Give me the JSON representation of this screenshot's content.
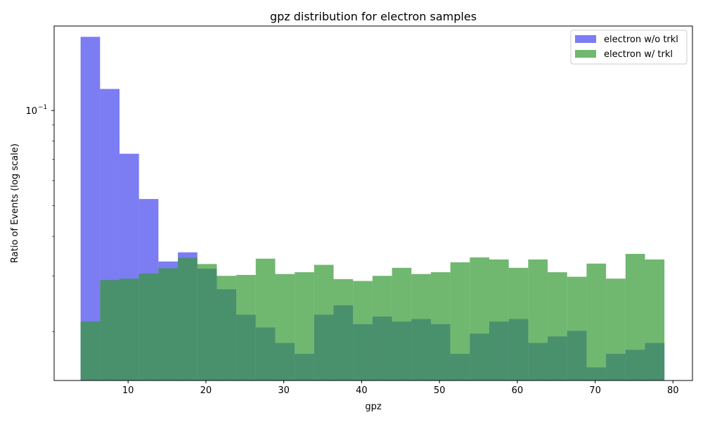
{
  "chart_data": {
    "type": "bar",
    "title": "gpz distribution for electron samples",
    "xlabel": "gpz",
    "ylabel": "Ratio of Events (log scale)",
    "y_scale": "log",
    "xlim": [
      0.5,
      82.5
    ],
    "ylim": [
      0.014,
      0.185
    ],
    "x_ticks": [
      10,
      20,
      30,
      40,
      50,
      60,
      70,
      80
    ],
    "x_tick_labels": [
      "10",
      "20",
      "30",
      "40",
      "50",
      "60",
      "70",
      "80"
    ],
    "y_ticks": [
      0.1
    ],
    "y_tick_labels": [
      "10",
      "−1"
    ],
    "legend_position": "upper right",
    "bin_edges": [
      3.9,
      6.4,
      8.9,
      11.4,
      13.9,
      16.4,
      18.9,
      21.4,
      23.9,
      26.4,
      28.9,
      31.4,
      33.9,
      36.4,
      38.9,
      41.4,
      43.9,
      46.4,
      48.9,
      51.4,
      53.9,
      56.4,
      58.9,
      61.4,
      63.9,
      66.4,
      68.9,
      71.4,
      73.9,
      76.4,
      78.9
    ],
    "series": [
      {
        "name": "electron w/o trkl",
        "color": "#4444ee",
        "opacity": 0.7,
        "values": [
          0.171,
          0.117,
          0.073,
          0.0525,
          0.0333,
          0.0356,
          0.0316,
          0.0272,
          0.0226,
          0.0206,
          0.0184,
          0.017,
          0.0226,
          0.0242,
          0.0211,
          0.0223,
          0.0215,
          0.0219,
          0.0211,
          0.017,
          0.0197,
          0.0215,
          0.0219,
          0.0184,
          0.0193,
          0.0201,
          0.0154,
          0.017,
          0.0175,
          0.0184
        ]
      },
      {
        "name": "electron w/ trkl",
        "color": "#339933",
        "opacity": 0.7,
        "values": [
          0.0215,
          0.0291,
          0.0294,
          0.0305,
          0.0317,
          0.0342,
          0.0327,
          0.03,
          0.0302,
          0.034,
          0.0304,
          0.0308,
          0.0325,
          0.0293,
          0.0289,
          0.03,
          0.0318,
          0.0304,
          0.0308,
          0.0331,
          0.0343,
          0.0338,
          0.0318,
          0.0338,
          0.0308,
          0.0298,
          0.0328,
          0.0294,
          0.0352,
          0.0338
        ]
      }
    ]
  }
}
